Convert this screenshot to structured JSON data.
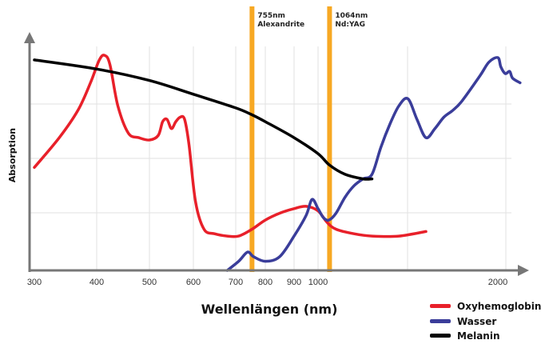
{
  "chart_data": {
    "type": "line",
    "xlabel": "Wellenlängen (nm)",
    "ylabel": "Absorption",
    "x_ticks": [
      "300",
      "400",
      "500",
      "600",
      "700",
      "800",
      "900",
      "1000",
      "2000"
    ],
    "grid": true,
    "legend_position": "bottom-right",
    "annotations": [
      {
        "x": "755",
        "line1": "755nm",
        "line2": "Alexandrite"
      },
      {
        "x": "1064",
        "line1": "1064nm",
        "line2": "Nd:YAG"
      }
    ],
    "series": [
      {
        "name": "Oxyhemoglobin",
        "color": "#e8202a",
        "points": [
          [
            300,
            0.45
          ],
          [
            340,
            0.58
          ],
          [
            370,
            0.7
          ],
          [
            390,
            0.82
          ],
          [
            405,
            0.92
          ],
          [
            415,
            0.94
          ],
          [
            425,
            0.9
          ],
          [
            440,
            0.72
          ],
          [
            460,
            0.6
          ],
          [
            480,
            0.58
          ],
          [
            500,
            0.57
          ],
          [
            520,
            0.59
          ],
          [
            530,
            0.65
          ],
          [
            540,
            0.66
          ],
          [
            550,
            0.62
          ],
          [
            560,
            0.65
          ],
          [
            570,
            0.67
          ],
          [
            580,
            0.66
          ],
          [
            590,
            0.55
          ],
          [
            605,
            0.3
          ],
          [
            625,
            0.18
          ],
          [
            650,
            0.16
          ],
          [
            680,
            0.15
          ],
          [
            710,
            0.15
          ],
          [
            755,
            0.18
          ],
          [
            800,
            0.22
          ],
          [
            850,
            0.25
          ],
          [
            900,
            0.27
          ],
          [
            950,
            0.28
          ],
          [
            1000,
            0.26
          ],
          [
            1050,
            0.21
          ],
          [
            1100,
            0.18
          ],
          [
            1200,
            0.16
          ],
          [
            1300,
            0.15
          ],
          [
            1450,
            0.15
          ],
          [
            1600,
            0.17
          ]
        ]
      },
      {
        "name": "Wasser",
        "color": "#3a3d9a",
        "points": [
          [
            680,
            0.0
          ],
          [
            710,
            0.04
          ],
          [
            740,
            0.08
          ],
          [
            760,
            0.06
          ],
          [
            800,
            0.04
          ],
          [
            850,
            0.06
          ],
          [
            900,
            0.15
          ],
          [
            950,
            0.24
          ],
          [
            975,
            0.31
          ],
          [
            1000,
            0.27
          ],
          [
            1030,
            0.23
          ],
          [
            1060,
            0.22
          ],
          [
            1100,
            0.25
          ],
          [
            1150,
            0.32
          ],
          [
            1200,
            0.37
          ],
          [
            1250,
            0.4
          ],
          [
            1300,
            0.42
          ],
          [
            1350,
            0.54
          ],
          [
            1400,
            0.64
          ],
          [
            1450,
            0.72
          ],
          [
            1500,
            0.75
          ],
          [
            1550,
            0.66
          ],
          [
            1600,
            0.58
          ],
          [
            1650,
            0.62
          ],
          [
            1700,
            0.67
          ],
          [
            1750,
            0.7
          ],
          [
            1800,
            0.74
          ],
          [
            1900,
            0.85
          ],
          [
            1950,
            0.91
          ],
          [
            2000,
            0.93
          ],
          [
            2020,
            0.89
          ],
          [
            2050,
            0.86
          ],
          [
            2080,
            0.87
          ],
          [
            2100,
            0.84
          ],
          [
            2150,
            0.82
          ]
        ]
      },
      {
        "name": "Melanin",
        "color": "#000000",
        "points": [
          [
            300,
            0.92
          ],
          [
            400,
            0.88
          ],
          [
            500,
            0.83
          ],
          [
            600,
            0.77
          ],
          [
            700,
            0.71
          ],
          [
            755,
            0.68
          ],
          [
            800,
            0.65
          ],
          [
            900,
            0.58
          ],
          [
            1000,
            0.51
          ],
          [
            1064,
            0.46
          ],
          [
            1150,
            0.42
          ],
          [
            1250,
            0.4
          ],
          [
            1300,
            0.4
          ]
        ]
      }
    ]
  }
}
